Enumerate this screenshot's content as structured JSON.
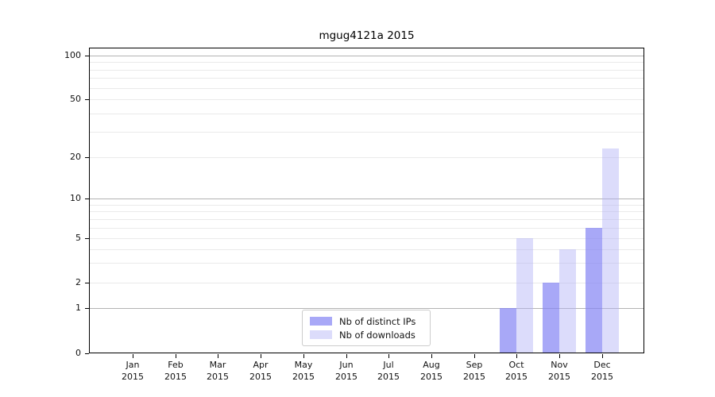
{
  "title": "mgug4121a 2015",
  "chart_data": {
    "type": "bar",
    "title": "mgug4121a 2015",
    "x_axis": {
      "months": [
        "Jan",
        "Feb",
        "Mar",
        "Apr",
        "May",
        "Jun",
        "Jul",
        "Aug",
        "Sep",
        "Oct",
        "Nov",
        "Dec"
      ],
      "year": "2015"
    },
    "categories": [
      "Jan 2015",
      "Feb 2015",
      "Mar 2015",
      "Apr 2015",
      "May 2015",
      "Jun 2015",
      "Jul 2015",
      "Aug 2015",
      "Sep 2015",
      "Oct 2015",
      "Nov 2015",
      "Dec 2015"
    ],
    "series": [
      {
        "name": "Nb of distinct IPs",
        "color": "rgba(134,134,244,0.72)",
        "values": [
          0,
          0,
          0,
          0,
          0,
          0,
          0,
          0,
          0,
          1,
          2,
          6
        ]
      },
      {
        "name": "Nb of downloads",
        "color": "rgba(178,178,247,0.45)",
        "values": [
          0,
          0,
          0,
          0,
          0,
          0,
          0,
          0,
          0,
          5,
          4,
          23
        ]
      }
    ],
    "y_scale": "log-like (0,1,2,5,10,20,50,100)",
    "y_ticks": [
      0,
      1,
      2,
      5,
      10,
      20,
      50,
      100
    ],
    "y_minor_gridlines": [
      3,
      4,
      6,
      7,
      8,
      9,
      30,
      40,
      60,
      70,
      80,
      90
    ],
    "y_major_gridlines": [
      1,
      10,
      100
    ],
    "ylim": [
      0,
      114
    ],
    "grid": true,
    "legend_position": "lower center"
  },
  "legend": {
    "items": [
      {
        "label": "Nb of distinct IPs",
        "color": "rgba(134,134,244,0.72)"
      },
      {
        "label": "Nb of downloads",
        "color": "rgba(178,178,247,0.45)"
      }
    ]
  },
  "colors": {
    "background": "#ffffff",
    "bar_distinct_ips": "#aaaaf5",
    "bar_downloads": "#dcdcfa",
    "grid_minor": "#eaeaea",
    "grid_major": "#b3b3b3",
    "axis": "#000000",
    "legend_border": "#cccccc"
  }
}
